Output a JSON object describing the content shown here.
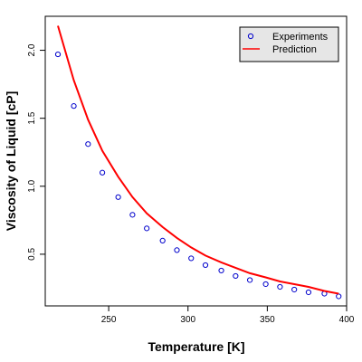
{
  "chart_data": {
    "type": "scatter",
    "title": "",
    "xlabel": "Temperature [K]",
    "ylabel": "Viscosity of Liquid [cP]",
    "xlim": [
      210,
      400
    ],
    "ylim": [
      0.12,
      2.25
    ],
    "xticks": [
      250,
      300,
      350,
      400
    ],
    "yticks": [
      0.5,
      1.0,
      1.5,
      2.0
    ],
    "ytick_labels": [
      "0.5",
      "1.0",
      "1.5",
      "2.0"
    ],
    "grid": false,
    "legend_position": "top-right",
    "series": [
      {
        "name": "Experiments",
        "kind": "points",
        "marker": "open-circle",
        "color": "#0000cc",
        "x": [
          218,
          228,
          237,
          246,
          256,
          265,
          274,
          284,
          293,
          302,
          311,
          321,
          330,
          339,
          349,
          358,
          367,
          376,
          386,
          395
        ],
        "y": [
          1.97,
          1.59,
          1.31,
          1.1,
          0.92,
          0.79,
          0.69,
          0.6,
          0.53,
          0.47,
          0.42,
          0.38,
          0.34,
          0.31,
          0.28,
          0.26,
          0.24,
          0.22,
          0.21,
          0.19
        ]
      },
      {
        "name": "Prediction",
        "kind": "line",
        "color": "#ff0000",
        "x": [
          218,
          228,
          237,
          246,
          256,
          265,
          274,
          284,
          293,
          302,
          311,
          321,
          330,
          339,
          349,
          358,
          367,
          376,
          386,
          395
        ],
        "y": [
          2.18,
          1.78,
          1.49,
          1.26,
          1.07,
          0.92,
          0.8,
          0.7,
          0.62,
          0.55,
          0.49,
          0.44,
          0.4,
          0.36,
          0.33,
          0.3,
          0.28,
          0.26,
          0.23,
          0.21
        ]
      }
    ]
  }
}
